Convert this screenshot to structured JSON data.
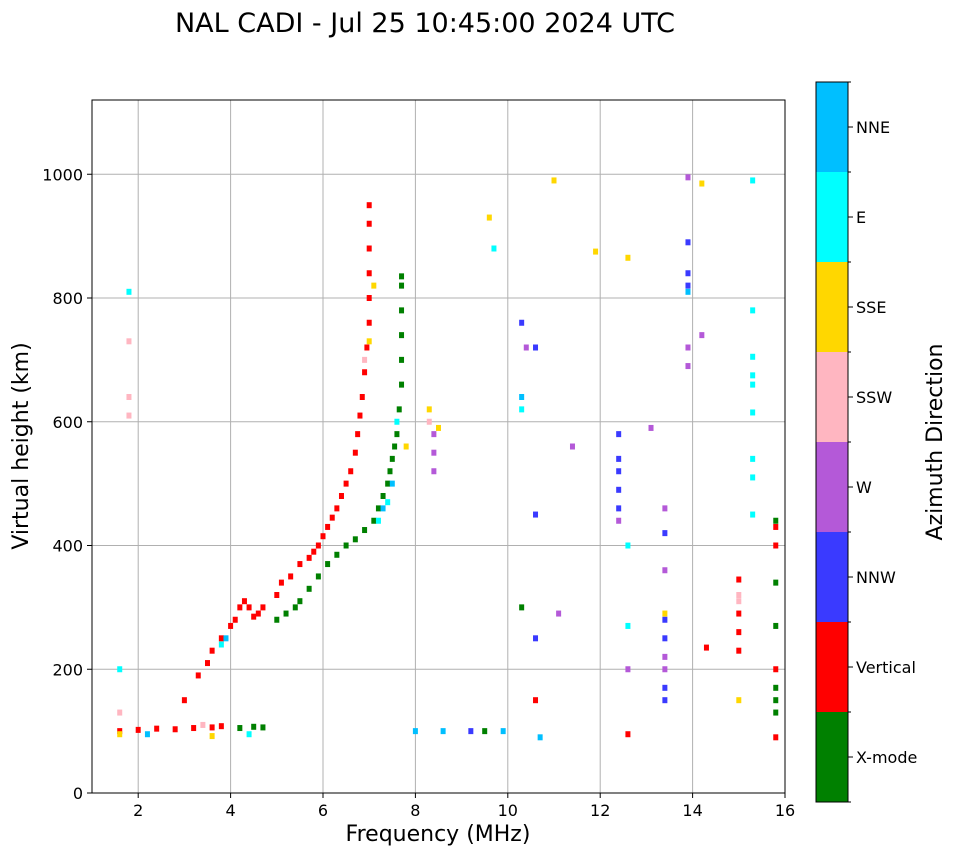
{
  "chart_data": {
    "type": "scatter",
    "title": "NAL CADI - Jul 25 10:45:00 2024 UTC",
    "xlabel": "Frequency (MHz)",
    "ylabel": "Virtual height (km)",
    "xlim": [
      1,
      16
    ],
    "ylim": [
      0,
      1120
    ],
    "xticks": [
      2,
      4,
      6,
      8,
      10,
      12,
      14,
      16
    ],
    "yticks": [
      0,
      200,
      400,
      600,
      800,
      1000
    ],
    "grid": true,
    "colorbar": {
      "title": "Azimuth Direction",
      "categories": [
        {
          "label": "X-mode",
          "color": "#008000"
        },
        {
          "label": "Vertical",
          "color": "#ff0000"
        },
        {
          "label": "NNW",
          "color": "#3a3aff"
        },
        {
          "label": "W",
          "color": "#b459d8"
        },
        {
          "label": "SSW",
          "color": "#ffb6c1"
        },
        {
          "label": "SSE",
          "color": "#ffd700"
        },
        {
          "label": "E",
          "color": "#00ffff"
        },
        {
          "label": "NNE",
          "color": "#00bfff"
        }
      ]
    },
    "series": [
      {
        "name": "Vertical",
        "color": "#ff0000",
        "points": [
          [
            1.6,
            100
          ],
          [
            2.0,
            102
          ],
          [
            2.4,
            104
          ],
          [
            2.8,
            103
          ],
          [
            3.2,
            105
          ],
          [
            3.6,
            106
          ],
          [
            3.8,
            108
          ],
          [
            3.0,
            150
          ],
          [
            3.3,
            190
          ],
          [
            3.5,
            210
          ],
          [
            3.6,
            230
          ],
          [
            3.8,
            250
          ],
          [
            4.0,
            270
          ],
          [
            4.1,
            280
          ],
          [
            4.2,
            300
          ],
          [
            4.3,
            310
          ],
          [
            4.4,
            300
          ],
          [
            4.5,
            285
          ],
          [
            4.6,
            290
          ],
          [
            4.7,
            300
          ],
          [
            5.0,
            320
          ],
          [
            5.1,
            340
          ],
          [
            5.3,
            350
          ],
          [
            5.5,
            370
          ],
          [
            5.7,
            380
          ],
          [
            5.8,
            390
          ],
          [
            5.9,
            400
          ],
          [
            6.0,
            415
          ],
          [
            6.1,
            430
          ],
          [
            6.2,
            445
          ],
          [
            6.3,
            460
          ],
          [
            6.4,
            480
          ],
          [
            6.5,
            500
          ],
          [
            6.6,
            520
          ],
          [
            6.7,
            550
          ],
          [
            6.75,
            580
          ],
          [
            6.8,
            610
          ],
          [
            6.85,
            640
          ],
          [
            6.9,
            680
          ],
          [
            6.95,
            720
          ],
          [
            7.0,
            760
          ],
          [
            7.0,
            800
          ],
          [
            7.0,
            840
          ],
          [
            7.0,
            880
          ],
          [
            7.0,
            920
          ],
          [
            7.0,
            950
          ],
          [
            10.6,
            150
          ],
          [
            12.6,
            95
          ],
          [
            14.3,
            235
          ],
          [
            15.0,
            230
          ],
          [
            15.0,
            260
          ],
          [
            15.0,
            290
          ],
          [
            15.0,
            345
          ],
          [
            15.8,
            90
          ],
          [
            15.8,
            200
          ],
          [
            15.8,
            400
          ],
          [
            15.8,
            430
          ]
        ]
      },
      {
        "name": "X-mode",
        "color": "#008000",
        "points": [
          [
            4.2,
            105
          ],
          [
            4.5,
            107
          ],
          [
            4.7,
            106
          ],
          [
            5.0,
            280
          ],
          [
            5.2,
            290
          ],
          [
            5.4,
            300
          ],
          [
            5.5,
            310
          ],
          [
            5.7,
            330
          ],
          [
            5.9,
            350
          ],
          [
            6.1,
            370
          ],
          [
            6.3,
            385
          ],
          [
            6.5,
            400
          ],
          [
            6.7,
            410
          ],
          [
            6.9,
            425
          ],
          [
            7.1,
            440
          ],
          [
            7.2,
            460
          ],
          [
            7.3,
            480
          ],
          [
            7.4,
            500
          ],
          [
            7.45,
            520
          ],
          [
            7.5,
            540
          ],
          [
            7.55,
            560
          ],
          [
            7.6,
            580
          ],
          [
            7.65,
            620
          ],
          [
            7.7,
            660
          ],
          [
            7.7,
            700
          ],
          [
            7.7,
            740
          ],
          [
            7.7,
            780
          ],
          [
            7.7,
            820
          ],
          [
            7.7,
            835
          ],
          [
            9.5,
            100
          ],
          [
            10.3,
            300
          ],
          [
            15.8,
            130
          ],
          [
            15.8,
            150
          ],
          [
            15.8,
            170
          ],
          [
            15.8,
            270
          ],
          [
            15.8,
            340
          ],
          [
            15.8,
            440
          ]
        ]
      },
      {
        "name": "NNW",
        "color": "#3a3aff",
        "points": [
          [
            9.2,
            100
          ],
          [
            10.3,
            760
          ],
          [
            10.6,
            720
          ],
          [
            10.6,
            450
          ],
          [
            10.6,
            250
          ],
          [
            12.4,
            460
          ],
          [
            12.4,
            490
          ],
          [
            12.4,
            520
          ],
          [
            12.4,
            540
          ],
          [
            12.4,
            580
          ],
          [
            13.4,
            150
          ],
          [
            13.4,
            170
          ],
          [
            13.4,
            250
          ],
          [
            13.4,
            280
          ],
          [
            13.4,
            420
          ],
          [
            13.9,
            820
          ],
          [
            13.9,
            840
          ],
          [
            13.9,
            890
          ]
        ]
      },
      {
        "name": "W",
        "color": "#b459d8",
        "points": [
          [
            8.4,
            520
          ],
          [
            8.4,
            550
          ],
          [
            8.4,
            580
          ],
          [
            10.4,
            720
          ],
          [
            11.1,
            290
          ],
          [
            11.4,
            560
          ],
          [
            12.4,
            440
          ],
          [
            12.6,
            200
          ],
          [
            13.1,
            590
          ],
          [
            13.4,
            200
          ],
          [
            13.4,
            220
          ],
          [
            13.4,
            360
          ],
          [
            13.4,
            460
          ],
          [
            13.9,
            690
          ],
          [
            13.9,
            720
          ],
          [
            13.9,
            995
          ],
          [
            14.2,
            740
          ]
        ]
      },
      {
        "name": "SSW",
        "color": "#ffb6c1",
        "points": [
          [
            1.6,
            130
          ],
          [
            1.8,
            610
          ],
          [
            1.8,
            640
          ],
          [
            1.8,
            730
          ],
          [
            3.4,
            110
          ],
          [
            6.9,
            700
          ],
          [
            8.3,
            600
          ],
          [
            15.0,
            310
          ],
          [
            15.0,
            320
          ]
        ]
      },
      {
        "name": "SSE",
        "color": "#ffd700",
        "points": [
          [
            1.6,
            95
          ],
          [
            3.6,
            92
          ],
          [
            7.0,
            730
          ],
          [
            7.1,
            820
          ],
          [
            7.8,
            560
          ],
          [
            8.3,
            620
          ],
          [
            8.5,
            590
          ],
          [
            9.6,
            930
          ],
          [
            11.0,
            990
          ],
          [
            11.9,
            875
          ],
          [
            12.6,
            865
          ],
          [
            13.4,
            290
          ],
          [
            14.2,
            985
          ],
          [
            15.0,
            150
          ]
        ]
      },
      {
        "name": "E",
        "color": "#00ffff",
        "points": [
          [
            1.6,
            200
          ],
          [
            1.8,
            810
          ],
          [
            3.8,
            240
          ],
          [
            4.4,
            95
          ],
          [
            7.2,
            440
          ],
          [
            7.4,
            470
          ],
          [
            7.6,
            600
          ],
          [
            9.7,
            880
          ],
          [
            10.3,
            620
          ],
          [
            12.6,
            400
          ],
          [
            12.6,
            270
          ],
          [
            15.3,
            450
          ],
          [
            15.3,
            510
          ],
          [
            15.3,
            540
          ],
          [
            15.3,
            615
          ],
          [
            15.3,
            660
          ],
          [
            15.3,
            675
          ],
          [
            15.3,
            705
          ],
          [
            15.3,
            780
          ],
          [
            15.3,
            990
          ]
        ]
      },
      {
        "name": "NNE",
        "color": "#00bfff",
        "points": [
          [
            2.2,
            95
          ],
          [
            3.9,
            250
          ],
          [
            7.3,
            460
          ],
          [
            7.5,
            500
          ],
          [
            8.0,
            100
          ],
          [
            8.6,
            100
          ],
          [
            9.9,
            100
          ],
          [
            10.7,
            90
          ],
          [
            10.3,
            640
          ],
          [
            13.9,
            810
          ]
        ]
      }
    ]
  }
}
